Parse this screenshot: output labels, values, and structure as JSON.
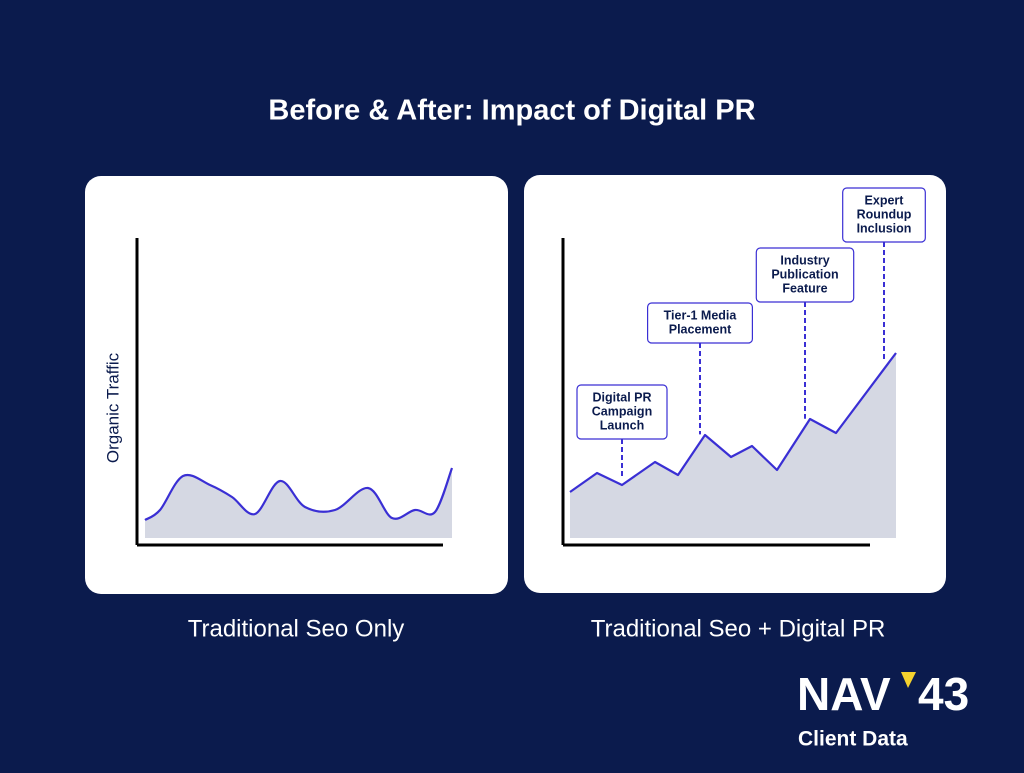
{
  "title": "Before & After: Impact of Digital PR",
  "chart_data": [
    {
      "type": "line",
      "y_label": "Organic Traffic",
      "caption": "Traditional Seo Only",
      "x": [
        0,
        15,
        38,
        65,
        87,
        110,
        135,
        160,
        190,
        223,
        247,
        270,
        290,
        307
      ],
      "values": [
        18,
        28,
        62,
        53,
        41,
        24,
        57,
        31,
        28,
        50,
        20,
        28,
        26,
        70
      ],
      "xlim": [
        0,
        307
      ],
      "ylim": [
        0,
        300
      ],
      "smooth": true,
      "color": "#3a2fd4",
      "fill": "#d5d8e3"
    },
    {
      "type": "line",
      "caption": "Traditional Seo + Digital PR",
      "x": [
        0,
        27,
        52,
        85,
        108,
        135,
        161,
        182,
        207,
        240,
        266,
        326
      ],
      "values": [
        46,
        65,
        53,
        76,
        63,
        103,
        81,
        92,
        68,
        119,
        105,
        185
      ],
      "xlim": [
        0,
        326
      ],
      "ylim": [
        0,
        300
      ],
      "smooth": false,
      "color": "#3a2fd4",
      "fill": "#d5d8e3",
      "annotations": [
        {
          "lines": [
            "Digital PR",
            "Campaign",
            "Launch"
          ],
          "x": 52
        },
        {
          "lines": [
            "Tier-1 Media",
            "Placement"
          ],
          "x": 130
        },
        {
          "lines": [
            "Industry",
            "Publication",
            "Feature"
          ],
          "x": 235
        },
        {
          "lines": [
            "Expert",
            "Roundup",
            "Inclusion"
          ],
          "x": 314
        }
      ]
    }
  ],
  "logo": {
    "brand": "NAV",
    "number": "43",
    "subtitle": "Client Data"
  }
}
